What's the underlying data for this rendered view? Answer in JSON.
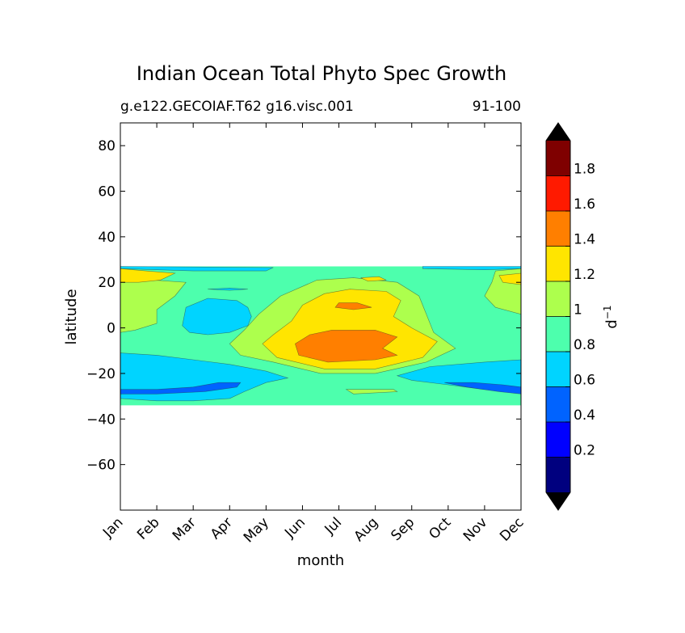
{
  "chart_data": {
    "type": "contourf",
    "title": "Indian Ocean Total Phyto Spec Growth",
    "subtitle_left": "g.e122.GECOIAF.T62 g16.visc.001",
    "subtitle_right": "91-100",
    "xlabel": "month",
    "ylabel": "latitude",
    "x_categories": [
      "Jan",
      "Feb",
      "Mar",
      "Apr",
      "May",
      "Jun",
      "Jul",
      "Aug",
      "Sep",
      "Oct",
      "Nov",
      "Dec"
    ],
    "ylim": [
      -80,
      90
    ],
    "y_ticks": [
      80,
      60,
      40,
      20,
      0,
      -20,
      -40,
      -60
    ],
    "y_tick_labels": [
      "80",
      "60",
      "40",
      "20",
      "0",
      "−20",
      "−40",
      "−60"
    ],
    "data_extent_lat": [
      -34,
      27
    ],
    "colorbar": {
      "label": "d",
      "label_exp": "−1",
      "extend": "both",
      "levels": [
        0.0,
        0.2,
        0.4,
        0.6,
        0.8,
        1.0,
        1.2,
        1.4,
        1.6,
        1.8,
        2.0
      ],
      "tick_labels": [
        "0.2",
        "0.4",
        "0.6",
        "0.8",
        "1",
        "1.2",
        "1.4",
        "1.6",
        "1.8"
      ],
      "colors": [
        "#00007f",
        "#0000ff",
        "#0063ff",
        "#00d4ff",
        "#4dffad",
        "#adff4d",
        "#ffe500",
        "#ff7f00",
        "#ff1a00",
        "#7f0000"
      ],
      "under_color": "#000000",
      "over_color": "#000000"
    },
    "regions": [
      {
        "value_bin": "0.8-1.0",
        "desc": "background band -34 to 27"
      },
      {
        "value_bin": "0.6-0.8",
        "desc": "southern band Jan-May and Sep-Dec, -12 to -30"
      },
      {
        "value_bin": "0.4-0.6",
        "desc": "patches near -27 in Feb-Apr and Oct-Dec"
      },
      {
        "value_bin": "1.0-1.2",
        "desc": "central Jun-Sep, -20 to 22"
      },
      {
        "value_bin": "1.2-1.4",
        "desc": "core Jun-Sep, -18 to 15; north edge Jan and Dec near 22"
      },
      {
        "value_bin": "1.4-1.6",
        "desc": "core Jul-Aug, -15 to -1 and near 10"
      }
    ]
  }
}
